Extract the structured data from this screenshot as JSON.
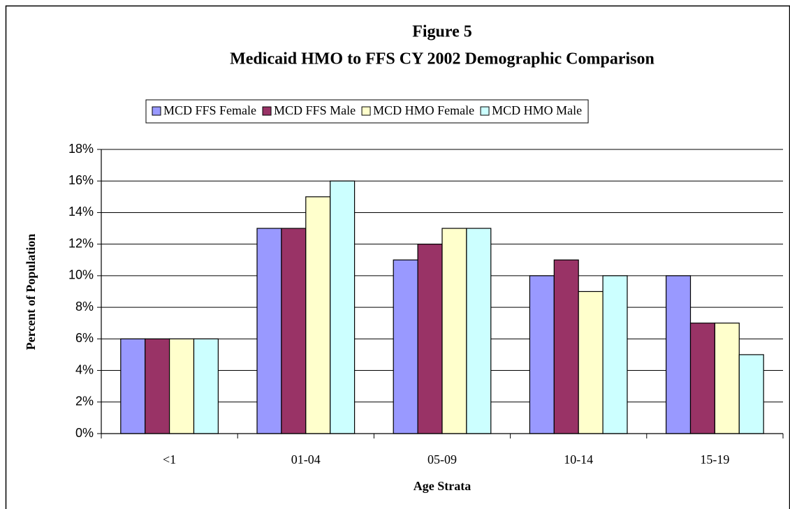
{
  "chart_data": {
    "type": "bar",
    "title": "Figure 5",
    "subtitle": "Medicaid HMO to FFS CY 2002 Demographic Comparison",
    "x_label": "Age Strata",
    "y_label": "Percent of Population",
    "categories": [
      "<1",
      "01-04",
      "05-09",
      "10-14",
      "15-19"
    ],
    "series": [
      {
        "name": "MCD FFS Female",
        "color": "#9999ff",
        "values": [
          6,
          13,
          11,
          10,
          10
        ]
      },
      {
        "name": "MCD FFS Male",
        "color": "#993366",
        "values": [
          6,
          13,
          12,
          11,
          7
        ]
      },
      {
        "name": "MCD HMO Female",
        "color": "#ffffcc",
        "values": [
          6,
          15,
          13,
          9,
          7
        ]
      },
      {
        "name": "MCD HMO Male",
        "color": "#ccffff",
        "values": [
          6,
          16,
          13,
          10,
          5
        ]
      }
    ],
    "ylim": [
      0,
      18
    ],
    "yticks": [
      {
        "value": 0,
        "label": "0%"
      },
      {
        "value": 2,
        "label": "2%"
      },
      {
        "value": 4,
        "label": "4%"
      },
      {
        "value": 6,
        "label": "6%"
      },
      {
        "value": 8,
        "label": "8%"
      },
      {
        "value": 10,
        "label": "10%"
      },
      {
        "value": 12,
        "label": "12%"
      },
      {
        "value": 14,
        "label": "14%"
      },
      {
        "value": 16,
        "label": "16%"
      },
      {
        "value": 18,
        "label": "18%"
      }
    ],
    "grid": true,
    "legend": "top"
  }
}
